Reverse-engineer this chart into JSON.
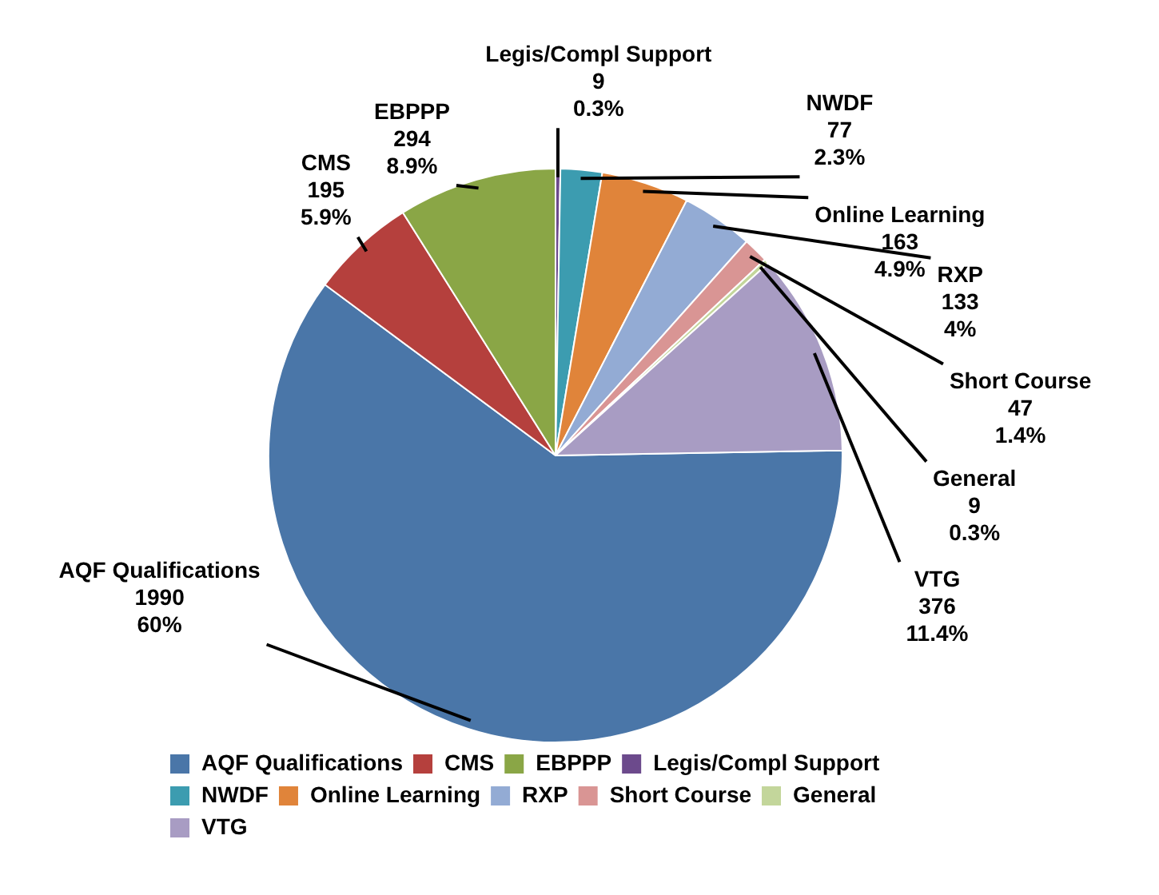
{
  "chart_data": {
    "type": "pie",
    "categories": [
      "AQF Qualifications",
      "CMS",
      "EBPPP",
      "Legis/Compl Support",
      "NWDF",
      "Online Learning",
      "RXP",
      "Short Course",
      "General",
      "VTG"
    ],
    "values": [
      1990,
      195,
      294,
      9,
      77,
      163,
      133,
      47,
      9,
      376
    ],
    "value_labels": [
      "1990\n60%",
      "195\n5.9%",
      "294\n8.9%",
      "9\n0.3%",
      "77\n2.3%",
      "163\n4.9%",
      "133\n4%",
      "47\n1.4%",
      "9\n0.3%",
      "376\n11.4%"
    ],
    "colors": [
      "#4a76a8",
      "#b5403d",
      "#8aa646",
      "#6c4a8c",
      "#3c9cb0",
      "#e0843a",
      "#93abd4",
      "#d99594",
      "#c3d69b",
      "#a89cc3"
    ],
    "legend": "bottom"
  }
}
